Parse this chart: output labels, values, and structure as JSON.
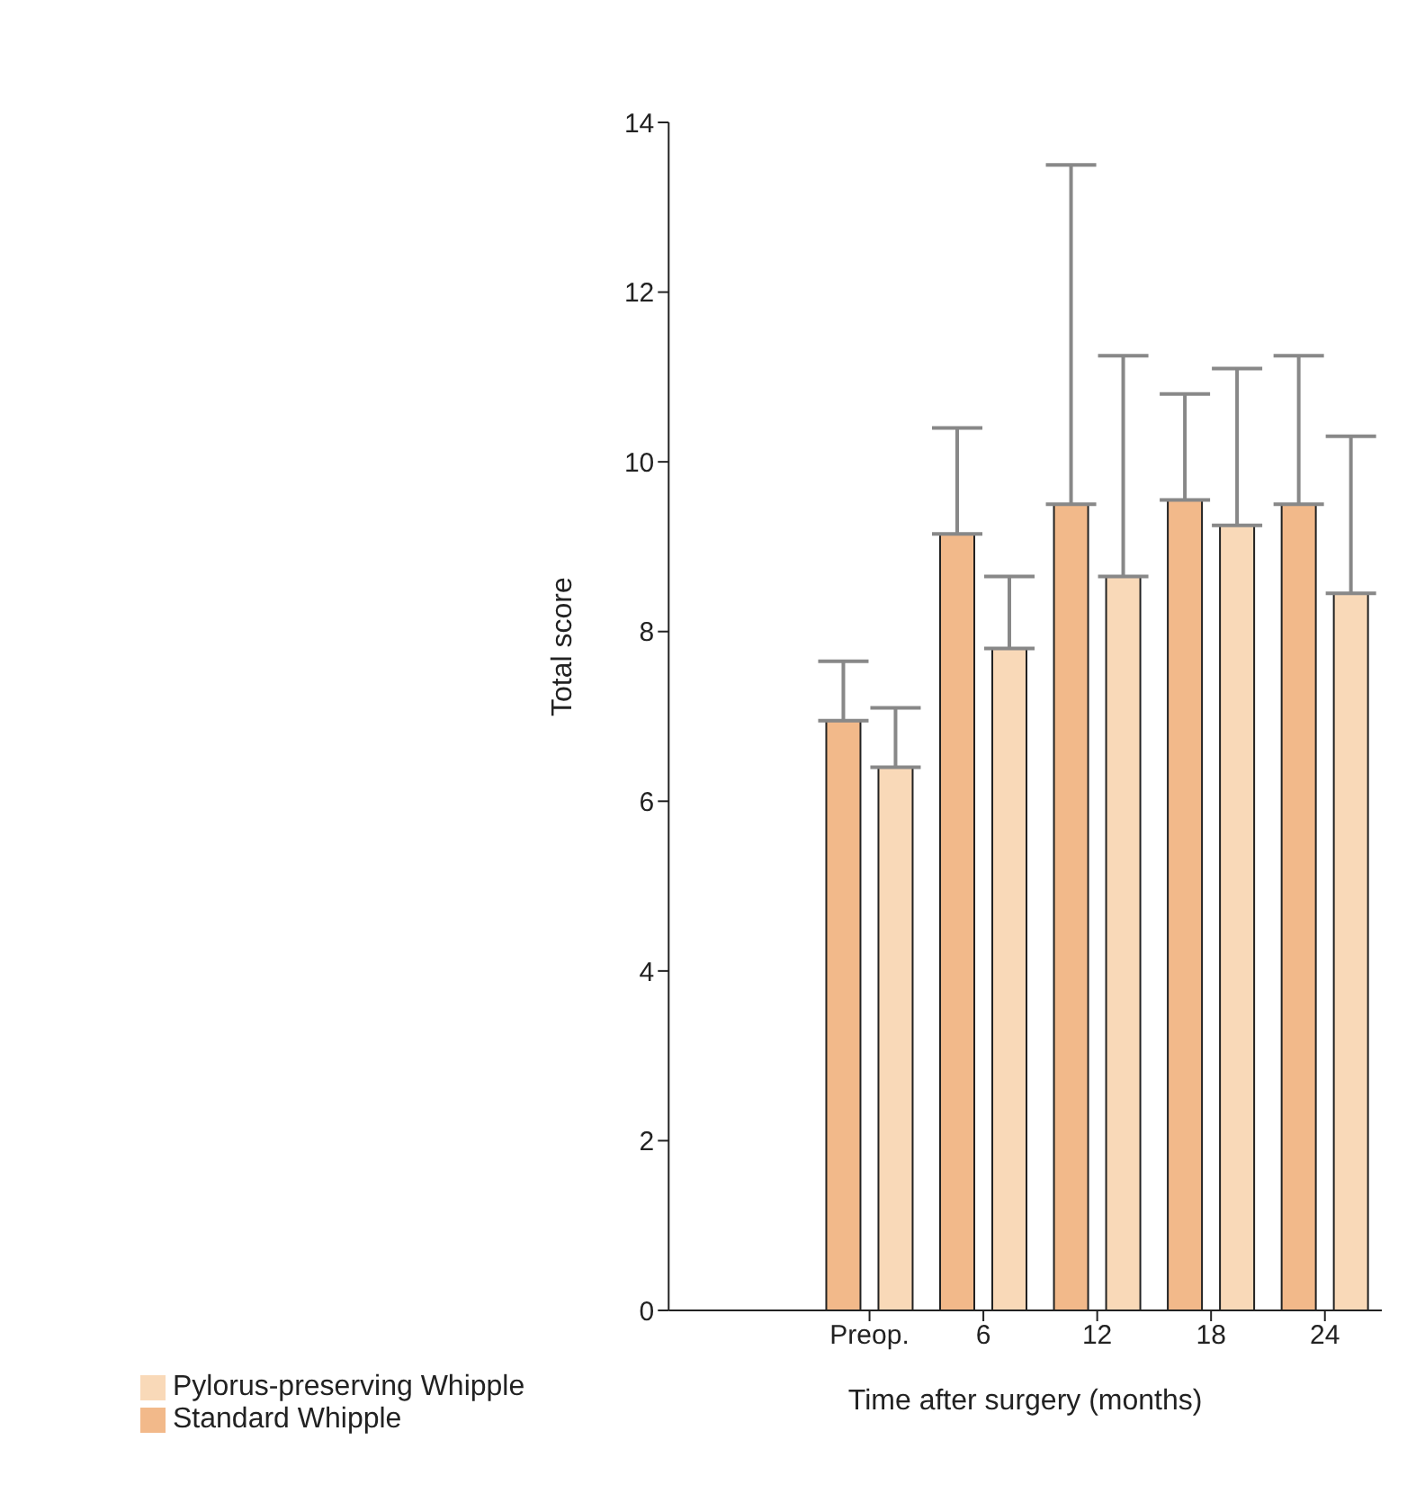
{
  "chart_data": {
    "type": "bar",
    "xlabel": "Time after surgery (months)",
    "ylabel": "Total score",
    "categories": [
      "Preop.",
      "6",
      "12",
      "18",
      "24"
    ],
    "series": [
      {
        "name": "Standard Whipple",
        "color": "#f2b98a",
        "values": [
          6.95,
          9.15,
          9.5,
          9.55,
          9.5
        ],
        "errors": [
          [
            6.95,
            7.65
          ],
          [
            9.15,
            10.4
          ],
          [
            9.5,
            13.5
          ],
          [
            9.55,
            10.8
          ],
          [
            9.5,
            11.25
          ]
        ]
      },
      {
        "name": "Pylorus-preserving Whipple",
        "color": "#f9d9b8",
        "values": [
          6.4,
          7.8,
          8.65,
          9.25,
          8.45
        ],
        "errors": [
          [
            6.4,
            7.1
          ],
          [
            7.8,
            8.65
          ],
          [
            8.65,
            11.25
          ],
          [
            9.25,
            11.1
          ],
          [
            8.45,
            10.3
          ]
        ]
      }
    ],
    "ylim": [
      0,
      14
    ],
    "yticks": [
      0,
      2,
      4,
      6,
      8,
      10,
      12,
      14
    ],
    "grid": false,
    "legend": "bottom left"
  }
}
